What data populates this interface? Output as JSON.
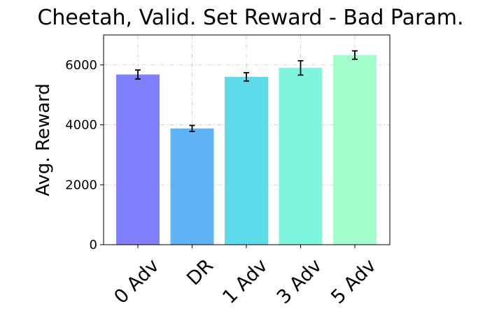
{
  "chart_data": {
    "type": "bar",
    "title": "Cheetah, Valid. Set Reward - Bad Param.",
    "xlabel": "",
    "ylabel": "Avg. Reward",
    "categories": [
      "0 Adv",
      "DR",
      "1 Adv",
      "3 Adv",
      "5 Adv"
    ],
    "values": [
      5680,
      3880,
      5600,
      5900,
      6330
    ],
    "errors": [
      150,
      100,
      140,
      240,
      140
    ],
    "colors": [
      "#8080ff",
      "#5fb4f6",
      "#5ddbeb",
      "#7ef5dd",
      "#a2ffcb"
    ],
    "ylim": [
      0,
      7000
    ],
    "yticks": [
      "0",
      "2000",
      "4000",
      "6000"
    ],
    "grid": true
  }
}
